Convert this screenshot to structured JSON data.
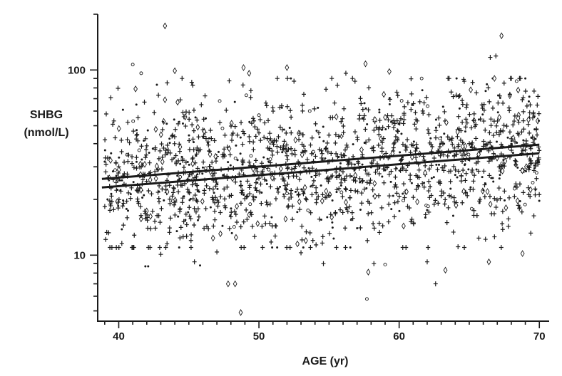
{
  "chart_data": {
    "type": "scatter",
    "title": "",
    "xlabel": "AGE (yr)",
    "ylabel_lines": [
      "SHBG",
      "(nmol/L)"
    ],
    "xlim": [
      38.5,
      70.7
    ],
    "ylim": [
      4.4,
      200
    ],
    "yscale": "log",
    "x_ticks": [
      40,
      50,
      60,
      70
    ],
    "x_minor_ticks": [
      39,
      41,
      42,
      43,
      44,
      45,
      46,
      47,
      48,
      49,
      51,
      52,
      53,
      54,
      55,
      56,
      57,
      58,
      59,
      61,
      62,
      63,
      64,
      65,
      66,
      67,
      68,
      69
    ],
    "y_ticks": [
      10,
      100
    ],
    "y_minor_ticks": [
      5,
      6,
      7,
      8,
      9,
      20,
      30,
      40,
      50,
      60,
      70,
      80,
      90,
      200
    ],
    "x_tick_labels": [
      "40",
      "50",
      "60",
      "70"
    ],
    "y_tick_labels": [
      "10",
      "100"
    ],
    "grid": false,
    "colors": {
      "ink": "#1a1a1a",
      "background": "#ffffff"
    },
    "regression_lines": [
      {
        "x": [
          38.8,
          70
        ],
        "y": [
          25.8,
          39.5
        ]
      },
      {
        "x": [
          38.8,
          70
        ],
        "y": [
          23.2,
          35.5
        ]
      }
    ],
    "point_generation": {
      "count": 1650,
      "x_range": [
        39,
        70
      ],
      "regression_y": [
        24.5,
        37.5
      ],
      "log_sd": 0.2,
      "marker_mix": {
        "plus": 0.72,
        "dot": 0.18,
        "diamond": 0.07,
        "circle": 0.03
      }
    },
    "outliers": [
      {
        "x": 39.0,
        "y": 32,
        "marker": "dot"
      },
      {
        "x": 39.2,
        "y": 20,
        "marker": "dot"
      },
      {
        "x": 40.3,
        "y": 61,
        "marker": "dot"
      },
      {
        "x": 41.0,
        "y": 107,
        "marker": "circle"
      },
      {
        "x": 41.2,
        "y": 79,
        "marker": "diamond"
      },
      {
        "x": 41.6,
        "y": 96,
        "marker": "circle"
      },
      {
        "x": 41.9,
        "y": 8.7,
        "marker": "dot"
      },
      {
        "x": 42.1,
        "y": 8.7,
        "marker": "dot"
      },
      {
        "x": 43.0,
        "y": 10.1,
        "marker": "plus"
      },
      {
        "x": 43.3,
        "y": 173,
        "marker": "diamond"
      },
      {
        "x": 43.3,
        "y": 69,
        "marker": "diamond"
      },
      {
        "x": 44.0,
        "y": 99,
        "marker": "diamond"
      },
      {
        "x": 44.2,
        "y": 67,
        "marker": "diamond"
      },
      {
        "x": 45.4,
        "y": 9.2,
        "marker": "plus"
      },
      {
        "x": 45.8,
        "y": 8.8,
        "marker": "dot"
      },
      {
        "x": 47.0,
        "y": 10.4,
        "marker": "plus"
      },
      {
        "x": 47.2,
        "y": 68,
        "marker": "circle"
      },
      {
        "x": 47.8,
        "y": 7.0,
        "marker": "diamond"
      },
      {
        "x": 48.3,
        "y": 7.0,
        "marker": "diamond"
      },
      {
        "x": 48.7,
        "y": 4.9,
        "marker": "diamond"
      },
      {
        "x": 48.9,
        "y": 103,
        "marker": "diamond"
      },
      {
        "x": 49.1,
        "y": 73,
        "marker": "circle"
      },
      {
        "x": 49.3,
        "y": 96,
        "marker": "diamond"
      },
      {
        "x": 50.0,
        "y": 57,
        "marker": "circle"
      },
      {
        "x": 52.0,
        "y": 103,
        "marker": "diamond"
      },
      {
        "x": 52.5,
        "y": 87,
        "marker": "plus"
      },
      {
        "x": 53.0,
        "y": 10.3,
        "marker": "plus"
      },
      {
        "x": 54.6,
        "y": 9.0,
        "marker": "plus"
      },
      {
        "x": 56.2,
        "y": 96,
        "marker": "plus"
      },
      {
        "x": 57.6,
        "y": 108,
        "marker": "diamond"
      },
      {
        "x": 57.7,
        "y": 5.8,
        "marker": "circle"
      },
      {
        "x": 57.8,
        "y": 8.1,
        "marker": "diamond"
      },
      {
        "x": 58.2,
        "y": 9.0,
        "marker": "plus"
      },
      {
        "x": 59.0,
        "y": 8.9,
        "marker": "circle"
      },
      {
        "x": 59.3,
        "y": 98,
        "marker": "diamond"
      },
      {
        "x": 62.0,
        "y": 9.2,
        "marker": "plus"
      },
      {
        "x": 62.6,
        "y": 7.0,
        "marker": "plus"
      },
      {
        "x": 63.3,
        "y": 8.3,
        "marker": "diamond"
      },
      {
        "x": 64.2,
        "y": 11.1,
        "marker": "plus"
      },
      {
        "x": 64.6,
        "y": 89,
        "marker": "plus"
      },
      {
        "x": 66.4,
        "y": 9.2,
        "marker": "diamond"
      },
      {
        "x": 66.5,
        "y": 117,
        "marker": "plus"
      },
      {
        "x": 66.9,
        "y": 119,
        "marker": "plus"
      },
      {
        "x": 67.3,
        "y": 153,
        "marker": "diamond"
      },
      {
        "x": 68.8,
        "y": 10.2,
        "marker": "diamond"
      },
      {
        "x": 69.9,
        "y": 72,
        "marker": "plus"
      }
    ]
  }
}
